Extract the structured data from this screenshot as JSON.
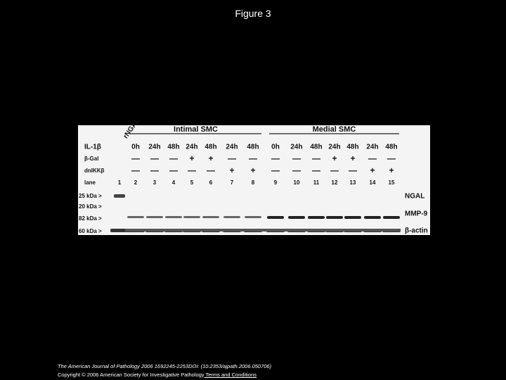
{
  "title": "Figure 3",
  "blot": {
    "control": "rNGAL",
    "groups": [
      "Intimal SMC",
      "Medial SMC"
    ],
    "treatments": [
      {
        "name": "IL-1β",
        "values": [
          "0h",
          "24h",
          "48h",
          "24h",
          "48h",
          "24h",
          "48h",
          "0h",
          "24h",
          "48h",
          "24h",
          "48h",
          "24h",
          "48h"
        ]
      },
      {
        "name": "β-Gal",
        "values": [
          "—",
          "—",
          "—",
          "+",
          "+",
          "—",
          "—",
          "—",
          "—",
          "—",
          "+",
          "+",
          "—",
          "—"
        ]
      },
      {
        "name": "dnIKKβ",
        "values": [
          "—",
          "—",
          "—",
          "—",
          "—",
          "+",
          "+",
          "—",
          "—",
          "—",
          "—",
          "—",
          "+",
          "+"
        ]
      }
    ],
    "lane_label": "lane",
    "lanes": [
      1,
      2,
      3,
      4,
      5,
      6,
      7,
      8,
      9,
      10,
      11,
      12,
      13,
      14,
      15
    ],
    "markers": [
      "25 kDa >",
      "20 kDa >",
      "82 kDa >",
      "60 kDa >"
    ],
    "band_labels": [
      "NGAL",
      "MMP-9",
      "β-actin"
    ]
  },
  "citation": {
    "journal": "The American Journal of Pathology 2006 1692245-2253DOI: (10.2353/ajpath.2006.050706)",
    "copyright": "Copyright © 2006 American Society for Investigative Pathology",
    "link": " Terms and Conditions"
  }
}
